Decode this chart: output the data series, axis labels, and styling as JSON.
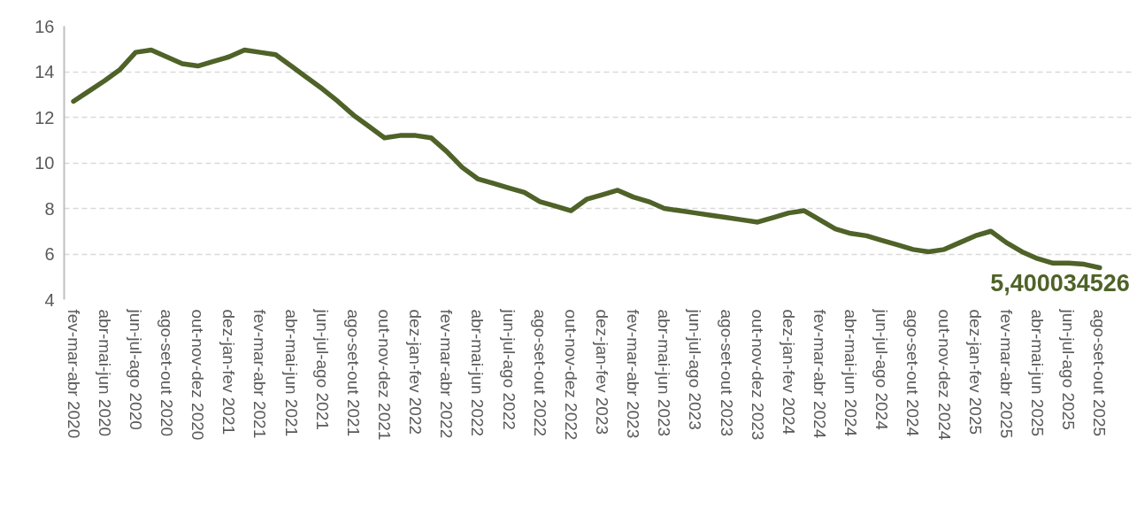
{
  "chart_data": {
    "type": "line",
    "categories": [
      "fev-mar-abr 2020",
      null,
      "abr-mai-jun 2020",
      null,
      "jun-jul-ago 2020",
      null,
      "ago-set-out 2020",
      null,
      "out-nov-dez 2020",
      null,
      "dez-jan-fev 2021",
      null,
      "fev-mar-abr 2021",
      null,
      "abr-mai-jun 2021",
      null,
      "jun-jul-ago 2021",
      null,
      "ago-set-out 2021",
      null,
      "out-nov-dez 2021",
      null,
      "dez-jan-fev 2022",
      null,
      "fev-mar-abr 2022",
      null,
      "abr-mai-jun 2022",
      null,
      "jun-jul-ago 2022",
      null,
      "ago-set-out 2022",
      null,
      "out-nov-dez 2022",
      null,
      "dez-jan-fev 2023",
      null,
      "fev-mar-abr 2023",
      null,
      "abr-mai-jun 2023",
      null,
      "jun-jul-ago 2023",
      null,
      "ago-set-out 2023",
      null,
      "out-nov-dez 2023",
      null,
      "dez-jan-fev 2024",
      null,
      "fev-mar-abr 2024",
      null,
      "abr-mai-jun 2024",
      null,
      "jun-jul-ago 2024",
      null,
      "ago-set-out 2024",
      null,
      "out-nov-dez 2024",
      null,
      "dez-jan-fev 2025",
      null,
      "fev-mar-abr 2025",
      null,
      "abr-mai-jun 2025",
      null,
      "jun-jul-ago 2025",
      null,
      "ago-set-out 2025"
    ],
    "series": [
      {
        "color": "#4f6228",
        "values": [
          12.7,
          13.15,
          13.6,
          14.1,
          14.85,
          14.95,
          14.65,
          14.35,
          14.25,
          14.45,
          14.65,
          14.95,
          14.85,
          14.75,
          14.25,
          13.75,
          13.25,
          12.7,
          12.1,
          11.6,
          11.1,
          11.2,
          11.2,
          11.1,
          10.5,
          9.8,
          9.3,
          9.1,
          8.9,
          8.7,
          8.3,
          8.1,
          7.9,
          8.4,
          8.6,
          8.8,
          8.5,
          8.3,
          8.0,
          7.9,
          7.8,
          7.7,
          7.6,
          7.5,
          7.4,
          7.6,
          7.8,
          7.9,
          7.5,
          7.1,
          6.9,
          6.8,
          6.6,
          6.4,
          6.2,
          6.1,
          6.2,
          6.5,
          6.8,
          7.0,
          6.5,
          6.1,
          5.8,
          5.6,
          5.6,
          5.55,
          5.400034526
        ],
        "value_labels": [
          null,
          null,
          null,
          null,
          null,
          null,
          null,
          null,
          null,
          null,
          null,
          null,
          null,
          null,
          null,
          null,
          null,
          null,
          null,
          null,
          null,
          null,
          null,
          null,
          null,
          null,
          null,
          null,
          null,
          null,
          null,
          null,
          null,
          null,
          null,
          null,
          null,
          null,
          null,
          null,
          null,
          null,
          null,
          null,
          null,
          null,
          null,
          null,
          null,
          null,
          null,
          null,
          null,
          null,
          null,
          null,
          null,
          null,
          null,
          null,
          null,
          null,
          null,
          null,
          null,
          null,
          "5,400034526"
        ]
      }
    ],
    "ylim": [
      4,
      16
    ],
    "yticks": [
      4,
      6,
      8,
      10,
      12,
      14,
      16
    ],
    "grid": "y",
    "line_style": "solid"
  }
}
